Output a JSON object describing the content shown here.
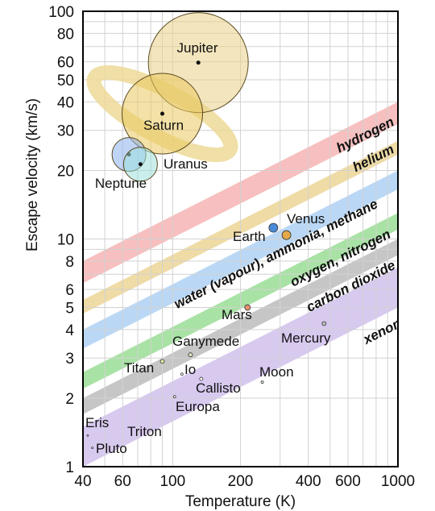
{
  "chart_data": {
    "type": "scatter",
    "title": "",
    "xlabel": "Temperature (K)",
    "ylabel": "Escape velocity (km/s)",
    "x_scale": "log",
    "y_scale": "log",
    "xlim": [
      40,
      1000
    ],
    "ylim": [
      1,
      100
    ],
    "xticks": [
      {
        "value": 40,
        "label": "40"
      },
      {
        "value": 60,
        "label": "60"
      },
      {
        "value": 100,
        "label": "100"
      },
      {
        "value": 200,
        "label": "200"
      },
      {
        "value": 400,
        "label": "400"
      },
      {
        "value": 600,
        "label": "600"
      },
      {
        "value": 1000,
        "label": "1000"
      }
    ],
    "yticks": [
      {
        "value": 1,
        "label": "1"
      },
      {
        "value": 2,
        "label": "2"
      },
      {
        "value": 3,
        "label": "3"
      },
      {
        "value": 4,
        "label": "4"
      },
      {
        "value": 5,
        "label": "5"
      },
      {
        "value": 6,
        "label": "6"
      },
      {
        "value": 8,
        "label": "8"
      },
      {
        "value": 10,
        "label": "10"
      },
      {
        "value": 20,
        "label": "20"
      },
      {
        "value": 30,
        "label": "30"
      },
      {
        "value": 40,
        "label": "40"
      },
      {
        "value": 50,
        "label": "50"
      },
      {
        "value": 60,
        "label": "60"
      },
      {
        "value": 80,
        "label": "80"
      },
      {
        "value": 100,
        "label": "100"
      }
    ],
    "grid": true,
    "bands": [
      {
        "label": "hydrogen",
        "color": "#f7bcbc",
        "lower_at_40": 6.4,
        "upper_at_1000": 40
      },
      {
        "label": "helium",
        "color": "#eed9a0",
        "lower_at_40": 4.7,
        "upper_at_1000": 27
      },
      {
        "label": "water (vapour), ammonia, methane",
        "color": "#b6d6f4",
        "lower_at_40": 3.3,
        "upper_at_1000": 20
      },
      {
        "label": "oxygen, nitrogen",
        "color": "#a4e0a0",
        "lower_at_40": 2.2,
        "upper_at_1000": 13
      },
      {
        "label": "carbon dioxide",
        "color": "#c3c3c3",
        "lower_at_40": 1.7,
        "upper_at_1000": 10
      },
      {
        "label": "xenon",
        "color": "#d6c6ee",
        "lower_at_40": 1.0,
        "upper_at_1000": 7.5
      }
    ],
    "bodies": [
      {
        "name": "Jupiter",
        "temp": 130,
        "vesc": 59.5,
        "color": "#e9cf86"
      },
      {
        "name": "Saturn",
        "temp": 90,
        "vesc": 35.5,
        "color": "#eac95e"
      },
      {
        "name": "Neptune",
        "temp": 64,
        "vesc": 23.5,
        "color": "#8db0ee"
      },
      {
        "name": "Uranus",
        "temp": 72,
        "vesc": 21.3,
        "color": "#9fe0dc"
      },
      {
        "name": "Venus",
        "temp": 280,
        "vesc": 11.2,
        "color": "#4a8ad6"
      },
      {
        "name": "Earth",
        "temp": 320,
        "vesc": 10.4,
        "color": "#e3a94a"
      },
      {
        "name": "Mars",
        "temp": 215,
        "vesc": 5.0,
        "color": "#ea9070"
      },
      {
        "name": "Mercury",
        "temp": 470,
        "vesc": 4.25,
        "color": "#bfbfbf"
      },
      {
        "name": "Ganymede",
        "temp": 120,
        "vesc": 3.1,
        "color": "#e5e8c0"
      },
      {
        "name": "Titan",
        "temp": 90,
        "vesc": 2.9,
        "color": "#dfe8a8"
      },
      {
        "name": "Io",
        "temp": 110,
        "vesc": 2.55,
        "color": "#ffffff"
      },
      {
        "name": "Callisto",
        "temp": 134,
        "vesc": 2.43,
        "color": "#ffffff"
      },
      {
        "name": "Moon",
        "temp": 250,
        "vesc": 2.35,
        "color": "#ffffff"
      },
      {
        "name": "Europa",
        "temp": 102,
        "vesc": 2.03,
        "color": "#ffffff"
      },
      {
        "name": "Eris",
        "temp": 42,
        "vesc": 1.37,
        "color": "#ffffff"
      },
      {
        "name": "Triton",
        "temp": 38,
        "vesc": 1.45,
        "color": "#ffffff"
      },
      {
        "name": "Pluto",
        "temp": 44,
        "vesc": 1.21,
        "color": "#ffffff"
      }
    ]
  }
}
